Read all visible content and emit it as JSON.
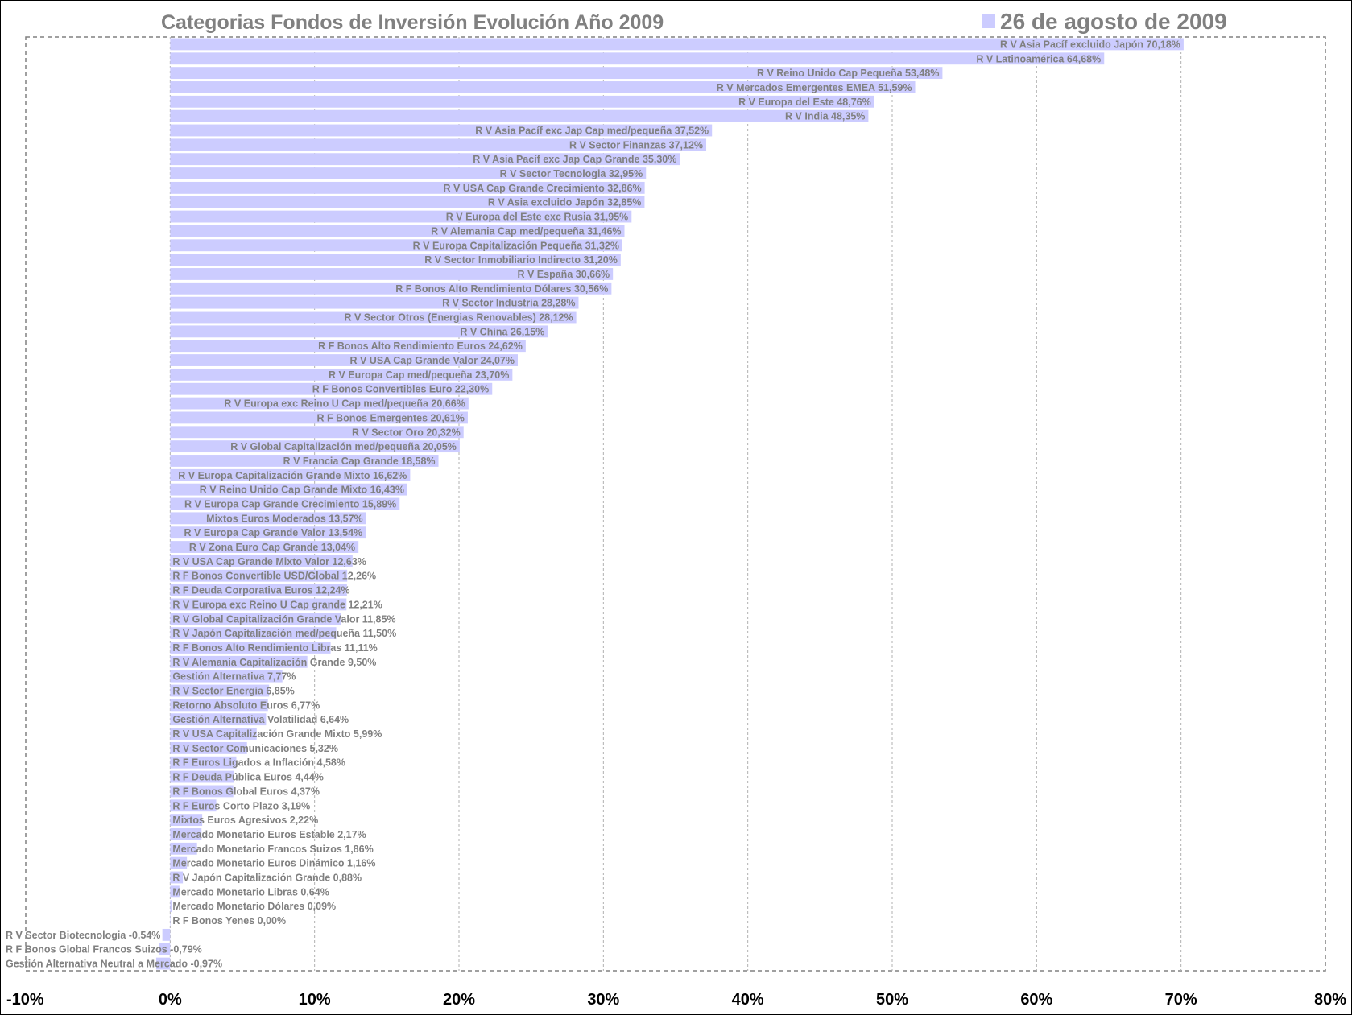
{
  "chart_data": {
    "type": "bar",
    "orientation": "horizontal",
    "title": "Categorias Fondos de Inversión Evolución Año 2009",
    "legend": {
      "label": "26 de agosto de 2009",
      "position": "top-right",
      "color": "#CCCCFF"
    },
    "series": [
      {
        "name": "26 de agosto de 2009",
        "color": "#CCCCFF"
      }
    ],
    "xlim": [
      -10,
      80
    ],
    "x_ticks": [
      "-10%",
      "0%",
      "10%",
      "20%",
      "30%",
      "40%",
      "50%",
      "60%",
      "70%",
      "80%"
    ],
    "grid": "vertical dashed",
    "bar_color": "#CCCCFF",
    "label_color": "#808080",
    "categories": [
      "R V Asia Pacíf excluido Japón",
      "R V Latinoamérica",
      "R V Reino Unido Cap Pequeña",
      "R V Mercados Emergentes EMEA",
      "R V Europa del Este",
      "R V India",
      "R V Asia Pacíf exc Jap Cap med/pequeña",
      "R V Sector Finanzas",
      "R V Asia Pacíf exc Jap Cap Grande",
      "R V Sector Tecnologia",
      "R V USA Cap Grande Crecimiento",
      "R V Asia excluido Japón",
      "R V Europa del Este exc Rusia",
      "R V Alemania Cap med/pequeña",
      "R V Europa Capitalización Pequeña",
      "R V Sector Inmobiliario Indirecto",
      "R V España",
      "R F Bonos Alto Rendimiento Dólares",
      "R V Sector Industria",
      "R V Sector Otros (Energias Renovables)",
      "R V China",
      "R F Bonos Alto Rendimiento Euros",
      "R V USA Cap Grande Valor",
      "R V Europa Cap med/pequeña",
      "R F Bonos Convertibles Euro",
      "R V Europa exc Reino U Cap med/pequeña",
      "R F Bonos Emergentes",
      "R V Sector Oro",
      "R V Global Capitalización med/pequeña",
      "R V Francia Cap Grande",
      "R V Europa Capitalización Grande Mixto",
      "R V Reino Unido Cap Grande Mixto",
      "R V Europa Cap Grande Crecimiento",
      "Mixtos Euros Moderados",
      "R V Europa Cap Grande Valor",
      "R V Zona Euro Cap Grande",
      "R V USA Cap Grande Mixto Valor",
      "R F Bonos Convertible USD/Global",
      "R F Deuda Corporativa Euros",
      "R V Europa exc Reino U Cap grande",
      "R V Global Capitalización Grande Valor",
      "R V Japón Capitalización med/pequeña",
      "R F Bonos Alto Rendimiento Libras",
      "R V Alemania Capitalización Grande",
      "Gestión Alternativa",
      "R V Sector Energia",
      "Retorno Absoluto Euros",
      "Gestión Alternativa Volatilidad",
      "R V USA Capitalización Grande Mixto",
      "R V Sector Comunicaciones",
      "R F Euros Ligados a Inflación",
      "R F Deuda Pública Euros",
      "R F Bonos Global Euros",
      "R F Euros Corto Plazo",
      "Mixtos Euros Agresivos",
      "Mercado Monetario Euros Estable",
      "Mercado Monetario Francos Suizos",
      "Mercado Monetario Euros Dinámico",
      "R V Japón Capitalización Grande",
      "Mercado Monetario Libras",
      "Mercado Monetario Dólares",
      "R F Bonos Yenes",
      "R V Sector Biotecnologia",
      "R F Bonos Global Francos Suizos",
      "Gestión Alternativa Neutral a Mercado"
    ],
    "values": [
      70.18,
      64.68,
      53.48,
      51.59,
      48.76,
      48.35,
      37.52,
      37.12,
      35.3,
      32.95,
      32.86,
      32.85,
      31.95,
      31.46,
      31.32,
      31.2,
      30.66,
      30.56,
      28.28,
      28.12,
      26.15,
      24.62,
      24.07,
      23.7,
      22.3,
      20.66,
      20.61,
      20.32,
      20.05,
      18.58,
      16.62,
      16.43,
      15.89,
      13.57,
      13.54,
      13.04,
      12.63,
      12.26,
      12.24,
      12.21,
      11.85,
      11.5,
      11.11,
      9.5,
      7.77,
      6.85,
      6.77,
      6.64,
      5.99,
      5.32,
      4.58,
      4.44,
      4.37,
      3.19,
      2.22,
      2.17,
      1.86,
      1.16,
      0.88,
      0.64,
      0.09,
      0.0,
      -0.54,
      -0.79,
      -0.97
    ],
    "data_labels": [
      "R V Asia Pacíf excluido Japón 70,18%",
      "R V Latinoamérica 64,68%",
      "R V Reino Unido Cap Pequeña 53,48%",
      "R V Mercados Emergentes EMEA 51,59%",
      "R V Europa del Este 48,76%",
      "R V India 48,35%",
      "R V Asia Pacíf exc Jap Cap med/pequeña 37,52%",
      "R V Sector Finanzas 37,12%",
      "R V Asia Pacíf exc Jap Cap Grande 35,30%",
      "R V Sector Tecnologia 32,95%",
      "R V USA Cap Grande Crecimiento 32,86%",
      "R V Asia excluido Japón 32,85%",
      "R V Europa del Este exc Rusia 31,95%",
      "R V Alemania Cap med/pequeña 31,46%",
      "R V Europa Capitalización Pequeña 31,32%",
      "R V Sector Inmobiliario Indirecto 31,20%",
      "R V España 30,66%",
      "R F Bonos Alto Rendimiento Dólares 30,56%",
      "R V Sector Industria 28,28%",
      "R V Sector Otros (Energias Renovables) 28,12%",
      "R V China 26,15%",
      "R F Bonos Alto Rendimiento Euros 24,62%",
      "R V USA Cap Grande Valor 24,07%",
      "R V Europa Cap med/pequeña 23,70%",
      "R F Bonos Convertibles Euro 22,30%",
      "R V Europa exc Reino U Cap med/pequeña 20,66%",
      "R F Bonos Emergentes 20,61%",
      "R V Sector Oro 20,32%",
      "R V Global Capitalización med/pequeña 20,05%",
      "R V Francia Cap Grande 18,58%",
      "R V Europa Capitalización Grande Mixto 16,62%",
      "R V Reino Unido Cap Grande Mixto 16,43%",
      "R V Europa Cap Grande Crecimiento 15,89%",
      "Mixtos Euros Moderados 13,57%",
      "R V Europa Cap Grande Valor 13,54%",
      "R V Zona Euro Cap Grande 13,04%",
      "R V USA Cap Grande Mixto Valor 12,63%",
      "R F Bonos Convertible USD/Global 12,26%",
      "R F Deuda Corporativa Euros 12,24%",
      "R V Europa exc Reino U Cap grande 12,21%",
      "R V Global Capitalización Grande Valor 11,85%",
      "R V Japón Capitalización med/pequeña 11,50%",
      "R F Bonos Alto Rendimiento Libras 11,11%",
      "R V Alemania Capitalización Grande 9,50%",
      "Gestión Alternativa 7,77%",
      "R V Sector Energia 6,85%",
      "Retorno Absoluto Euros 6,77%",
      "Gestión Alternativa Volatilidad 6,64%",
      "R V USA Capitalización Grande Mixto 5,99%",
      "R V Sector Comunicaciones 5,32%",
      "R F Euros Ligados a Inflación 4,58%",
      "R F Deuda Pública Euros 4,44%",
      "R F Bonos Global Euros 4,37%",
      "R F Euros Corto Plazo 3,19%",
      "Mixtos Euros Agresivos 2,22%",
      "Mercado Monetario Euros Estable 2,17%",
      "Mercado Monetario Francos Suizos 1,86%",
      "Mercado Monetario Euros Dinámico 1,16%",
      "R V Japón Capitalización Grande 0,88%",
      "Mercado Monetario Libras 0,64%",
      "Mercado Monetario Dólares 0,09%",
      "R F Bonos Yenes 0,00%",
      "R V Sector Biotecnologia -0,54%",
      "R F Bonos Global Francos Suizos -0,79%",
      "Gestión Alternativa Neutral a Mercado -0,97%"
    ]
  }
}
